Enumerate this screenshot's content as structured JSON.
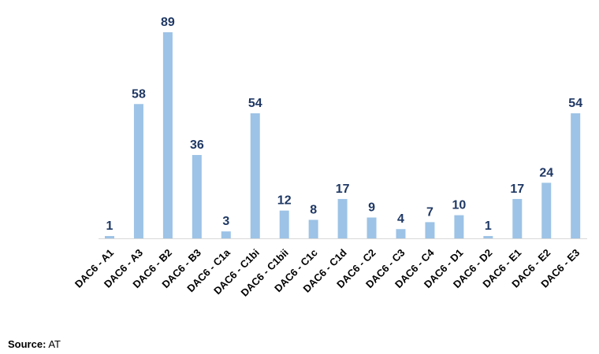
{
  "chart_data": {
    "type": "bar",
    "categories": [
      "DAC6 - A1",
      "DAC6 - A3",
      "DAC6 - B2",
      "DAC6 - B3",
      "DAC6 - C1a",
      "DAC6 - C1bi",
      "DAC6 - C1bii",
      "DAC6 - C1c",
      "DAC6 - C1d",
      "DAC6 - C2",
      "DAC6 - C3",
      "DAC6 - C4",
      "DAC6 - D1",
      "DAC6 - D2",
      "DAC6 - E1",
      "DAC6 - E2",
      "DAC6 - E3"
    ],
    "values": [
      1,
      58,
      89,
      36,
      3,
      54,
      12,
      8,
      17,
      9,
      4,
      7,
      10,
      1,
      17,
      24,
      54
    ],
    "color": "#9dc3e6",
    "source_label": "Source:",
    "source": "AT"
  }
}
